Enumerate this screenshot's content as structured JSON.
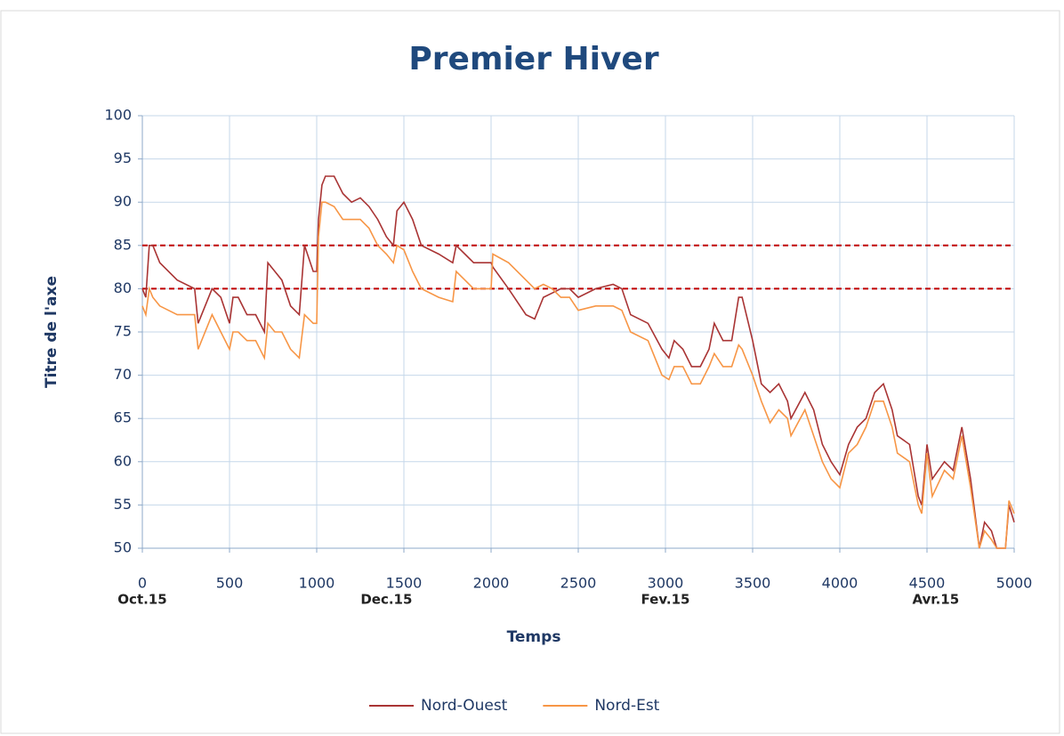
{
  "chart_data": {
    "type": "line",
    "title": "Premier Hiver",
    "x_label": "Temps",
    "y_label": "Titre de l'axe",
    "x": [
      0,
      20,
      40,
      60,
      100,
      200,
      300,
      320,
      400,
      450,
      500,
      520,
      550,
      600,
      650,
      700,
      720,
      760,
      800,
      850,
      900,
      930,
      980,
      1000,
      1010,
      1030,
      1050,
      1100,
      1150,
      1200,
      1250,
      1300,
      1350,
      1400,
      1440,
      1460,
      1500,
      1550,
      1600,
      1700,
      1780,
      1800,
      1850,
      1900,
      2000,
      2010,
      2100,
      2200,
      2250,
      2300,
      2350,
      2400,
      2450,
      2500,
      2600,
      2700,
      2750,
      2800,
      2900,
      2980,
      3020,
      3050,
      3100,
      3150,
      3200,
      3250,
      3280,
      3330,
      3380,
      3420,
      3440,
      3500,
      3550,
      3600,
      3650,
      3700,
      3720,
      3800,
      3850,
      3900,
      3950,
      4000,
      4050,
      4100,
      4150,
      4200,
      4250,
      4300,
      4330,
      4400,
      4450,
      4470,
      4500,
      4530,
      4600,
      4650,
      4700,
      4750,
      4800,
      4830,
      4870,
      4900,
      4950,
      4970,
      5000
    ],
    "series": [
      {
        "name": "Nord-Ouest",
        "color": "#a93434",
        "values": [
          80,
          79,
          85,
          85,
          83,
          81,
          80,
          76,
          80,
          79,
          76,
          79,
          79,
          77,
          77,
          75,
          83,
          82,
          81,
          78,
          77,
          85,
          82,
          82,
          88,
          92,
          93,
          93,
          91,
          90,
          90.5,
          89.5,
          88,
          86,
          85,
          89,
          90,
          88,
          85,
          84,
          83,
          85,
          84,
          83,
          83,
          82.5,
          80,
          77,
          76.5,
          79,
          79.5,
          80,
          80,
          79,
          80,
          80.5,
          80,
          77,
          76,
          73,
          72,
          74,
          73,
          71,
          71,
          73,
          76,
          74,
          74,
          79,
          79,
          74,
          69,
          68,
          69,
          67,
          65,
          68,
          66,
          62,
          60,
          58.5,
          62,
          64,
          65,
          68,
          69,
          66,
          63,
          62,
          56,
          55,
          62,
          58,
          60,
          59,
          64,
          58,
          50,
          53,
          52,
          50,
          50,
          55,
          53
        ]
      },
      {
        "name": "Nord-Est",
        "color": "#f79646",
        "values": [
          78,
          77,
          80,
          79,
          78,
          77,
          77,
          73,
          77,
          75,
          73,
          75,
          75,
          74,
          74,
          72,
          76,
          75,
          75,
          73,
          72,
          77,
          76,
          76,
          86,
          90,
          90,
          89.5,
          88,
          88,
          88,
          87,
          85,
          84,
          83,
          85,
          84.5,
          82,
          80,
          79,
          78.5,
          82,
          81,
          80,
          80,
          84,
          83,
          81,
          80,
          80.5,
          80,
          79,
          79,
          77.5,
          78,
          78,
          77.5,
          75,
          74,
          70,
          69.5,
          71,
          71,
          69,
          69,
          71,
          72.5,
          71,
          71,
          73.5,
          73,
          70,
          67,
          64.5,
          66,
          65,
          63,
          66,
          63,
          60,
          58,
          57,
          61,
          62,
          64,
          67,
          67,
          64,
          61,
          60,
          55,
          54,
          61,
          56,
          59,
          58,
          63,
          57,
          50,
          52,
          51,
          50,
          50,
          55.5,
          54
        ]
      }
    ],
    "hlines": [
      {
        "value": 85,
        "color": "#c00000"
      },
      {
        "value": 80,
        "color": "#c00000"
      }
    ],
    "annotations": [
      {
        "text": "Oct.15",
        "x": 0
      },
      {
        "text": "Dec.15",
        "x": 1400
      },
      {
        "text": "Fev.15",
        "x": 3000
      },
      {
        "text": "Avr.15",
        "x": 4550
      }
    ],
    "xlim": [
      0,
      5000
    ],
    "xticks": [
      0,
      500,
      1000,
      1500,
      2000,
      2500,
      3000,
      3500,
      4000,
      4500,
      5000
    ],
    "ylim": [
      50,
      100
    ],
    "yticks": [
      50,
      55,
      60,
      65,
      70,
      75,
      80,
      85,
      90,
      95,
      100
    ],
    "grid": true,
    "legend": "bottom"
  }
}
